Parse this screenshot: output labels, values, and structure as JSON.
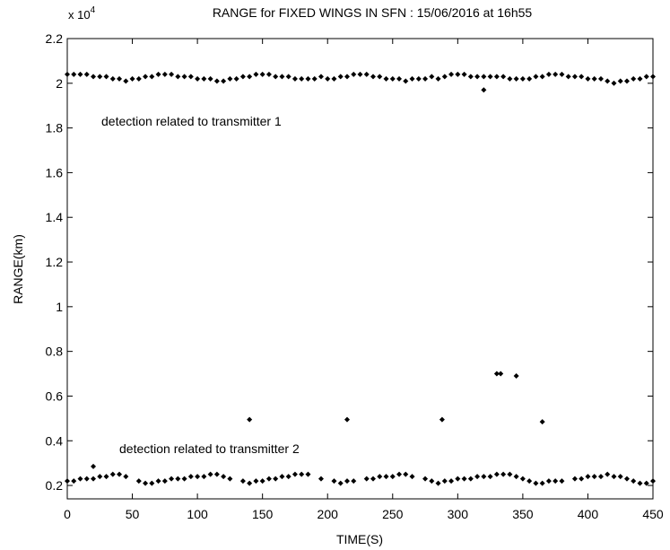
{
  "chart_data": {
    "type": "scatter",
    "title": "RANGE for FIXED WINGS IN SFN : 15/06/2016 at 16h55",
    "x_label": "TIME(S)",
    "y_label": "RANGE(km)",
    "y_multiplier": {
      "base": "x 10",
      "exponent": "4"
    },
    "annotations": [
      "detection related to transmitter 1",
      "detection related to transmitter 2"
    ],
    "color": "#000000",
    "marker": "diamond",
    "grid": false,
    "xlim": [
      0,
      450
    ],
    "xticks": [
      0,
      50,
      100,
      150,
      200,
      250,
      300,
      350,
      400,
      450
    ],
    "ylim": [
      0.14,
      2.2
    ],
    "yticks": [
      0.2,
      0.4,
      0.6,
      0.8,
      1,
      1.2,
      1.4,
      1.6,
      1.8,
      2,
      2.2
    ],
    "x": [
      0,
      5,
      10,
      15,
      20,
      25,
      30,
      35,
      40,
      45,
      50,
      55,
      60,
      65,
      70,
      75,
      80,
      85,
      90,
      95,
      100,
      105,
      110,
      115,
      120,
      125,
      130,
      135,
      140,
      145,
      150,
      155,
      160,
      165,
      170,
      175,
      180,
      185,
      190,
      195,
      200,
      205,
      210,
      215,
      220,
      225,
      230,
      235,
      240,
      245,
      250,
      255,
      260,
      265,
      270,
      275,
      280,
      285,
      290,
      295,
      300,
      305,
      310,
      315,
      320,
      325,
      330,
      335,
      340,
      345,
      350,
      355,
      360,
      365,
      370,
      375,
      380,
      385,
      390,
      395,
      400,
      405,
      410,
      415,
      420,
      425,
      430,
      435,
      440,
      445,
      450,
      0,
      5,
      10,
      15,
      20,
      25,
      30,
      35,
      40,
      45,
      55,
      60,
      65,
      70,
      75,
      80,
      85,
      90,
      95,
      100,
      105,
      110,
      115,
      120,
      125,
      135,
      140,
      145,
      150,
      155,
      160,
      165,
      170,
      175,
      180,
      185,
      195,
      205,
      210,
      215,
      220,
      230,
      235,
      240,
      245,
      250,
      255,
      260,
      265,
      275,
      280,
      285,
      290,
      295,
      300,
      305,
      310,
      315,
      320,
      325,
      330,
      335,
      340,
      345,
      350,
      355,
      360,
      365,
      370,
      375,
      380,
      390,
      395,
      400,
      405,
      410,
      415,
      420,
      425,
      430,
      435,
      440,
      445,
      450,
      20,
      140,
      215,
      288,
      320,
      330,
      333,
      345,
      365
    ],
    "values": [
      2.04,
      2.04,
      2.04,
      2.04,
      2.03,
      2.03,
      2.03,
      2.02,
      2.02,
      2.01,
      2.02,
      2.02,
      2.03,
      2.03,
      2.04,
      2.04,
      2.04,
      2.03,
      2.03,
      2.03,
      2.02,
      2.02,
      2.02,
      2.01,
      2.01,
      2.02,
      2.02,
      2.03,
      2.03,
      2.04,
      2.04,
      2.04,
      2.03,
      2.03,
      2.03,
      2.02,
      2.02,
      2.02,
      2.02,
      2.03,
      2.02,
      2.02,
      2.03,
      2.03,
      2.04,
      2.04,
      2.04,
      2.03,
      2.03,
      2.02,
      2.02,
      2.02,
      2.01,
      2.02,
      2.02,
      2.02,
      2.03,
      2.02,
      2.03,
      2.04,
      2.04,
      2.04,
      2.03,
      2.03,
      2.03,
      2.03,
      2.03,
      2.03,
      2.02,
      2.02,
      2.02,
      2.02,
      2.03,
      2.03,
      2.04,
      2.04,
      2.04,
      2.03,
      2.03,
      2.03,
      2.02,
      2.02,
      2.02,
      2.01,
      2.0,
      2.01,
      2.01,
      2.02,
      2.02,
      2.03,
      2.03,
      0.22,
      0.22,
      0.23,
      0.23,
      0.23,
      0.24,
      0.24,
      0.25,
      0.25,
      0.24,
      0.22,
      0.21,
      0.21,
      0.22,
      0.22,
      0.23,
      0.23,
      0.23,
      0.24,
      0.24,
      0.24,
      0.25,
      0.25,
      0.24,
      0.23,
      0.22,
      0.21,
      0.22,
      0.22,
      0.23,
      0.23,
      0.24,
      0.24,
      0.25,
      0.25,
      0.25,
      0.23,
      0.22,
      0.21,
      0.22,
      0.22,
      0.23,
      0.23,
      0.24,
      0.24,
      0.24,
      0.25,
      0.25,
      0.24,
      0.23,
      0.22,
      0.21,
      0.22,
      0.22,
      0.23,
      0.23,
      0.23,
      0.24,
      0.24,
      0.24,
      0.25,
      0.25,
      0.25,
      0.24,
      0.23,
      0.22,
      0.21,
      0.21,
      0.22,
      0.22,
      0.22,
      0.23,
      0.23,
      0.24,
      0.24,
      0.24,
      0.25,
      0.24,
      0.24,
      0.23,
      0.22,
      0.21,
      0.21,
      0.22,
      0.285,
      0.495,
      0.495,
      0.495,
      1.97,
      0.7,
      0.7,
      0.69,
      0.485
    ]
  }
}
